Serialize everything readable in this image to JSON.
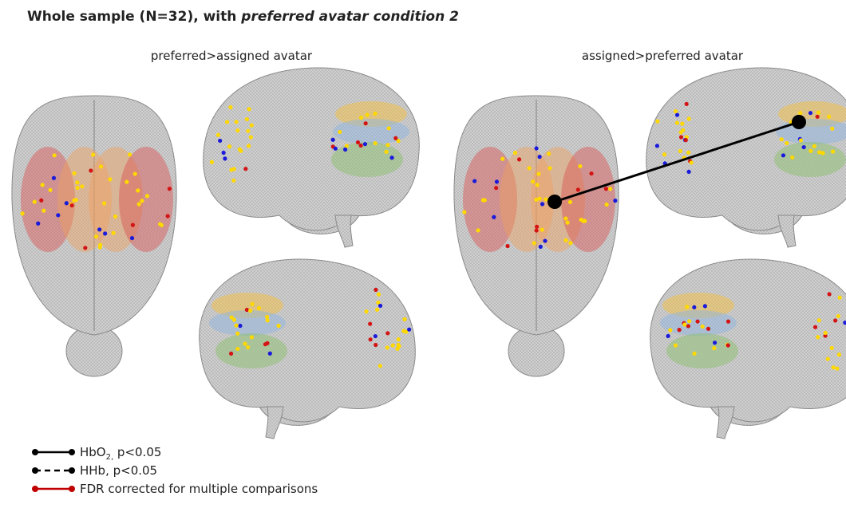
{
  "header": {
    "title": "Whole sample (N=32), with ",
    "title_italic": "preferred avatar condition 2"
  },
  "panels": [
    {
      "title": "preferred>assigned avatar"
    },
    {
      "title": "assigned>preferred avatar"
    }
  ],
  "legend": [
    {
      "text": "HbO",
      "sub": "2,",
      "rest": " p<0.05"
    },
    {
      "text": "HHb, p<0.05"
    },
    {
      "text": "FDR corrected for multiple comparisons"
    }
  ]
}
